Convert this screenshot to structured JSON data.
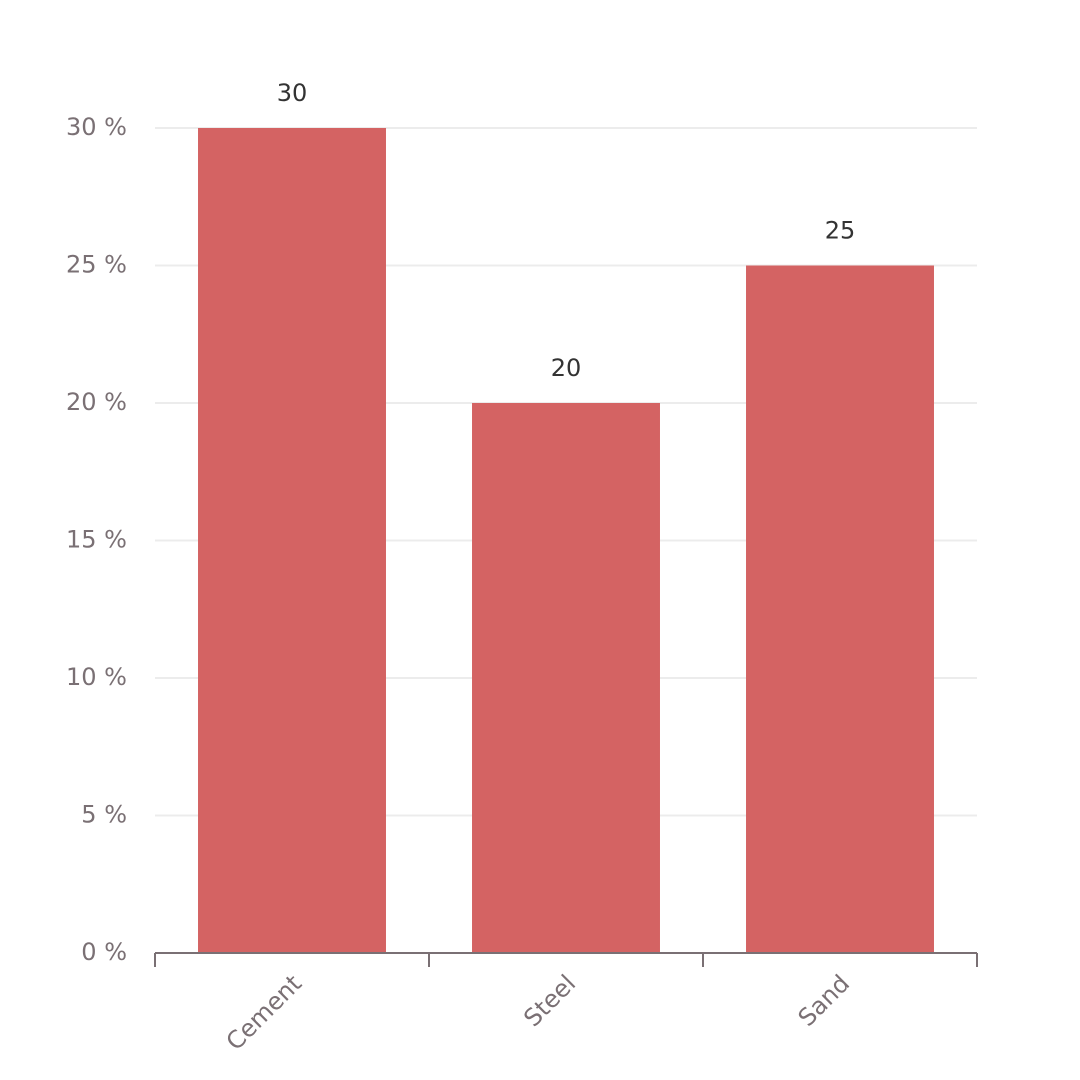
{
  "chart_data": {
    "type": "bar",
    "categories": [
      "Cement",
      "Steel",
      "Sand"
    ],
    "values": [
      30,
      20,
      25
    ],
    "color": "#d46363",
    "ylim": [
      0,
      30
    ],
    "yticks": [
      {
        "value": 0,
        "label": "0 %"
      },
      {
        "value": 5,
        "label": "5 %"
      },
      {
        "value": 10,
        "label": "10 %"
      },
      {
        "value": 15,
        "label": "15 %"
      },
      {
        "value": 20,
        "label": "20 %"
      },
      {
        "value": 25,
        "label": "25 %"
      },
      {
        "value": 30,
        "label": "30 %"
      }
    ],
    "grid": true
  }
}
